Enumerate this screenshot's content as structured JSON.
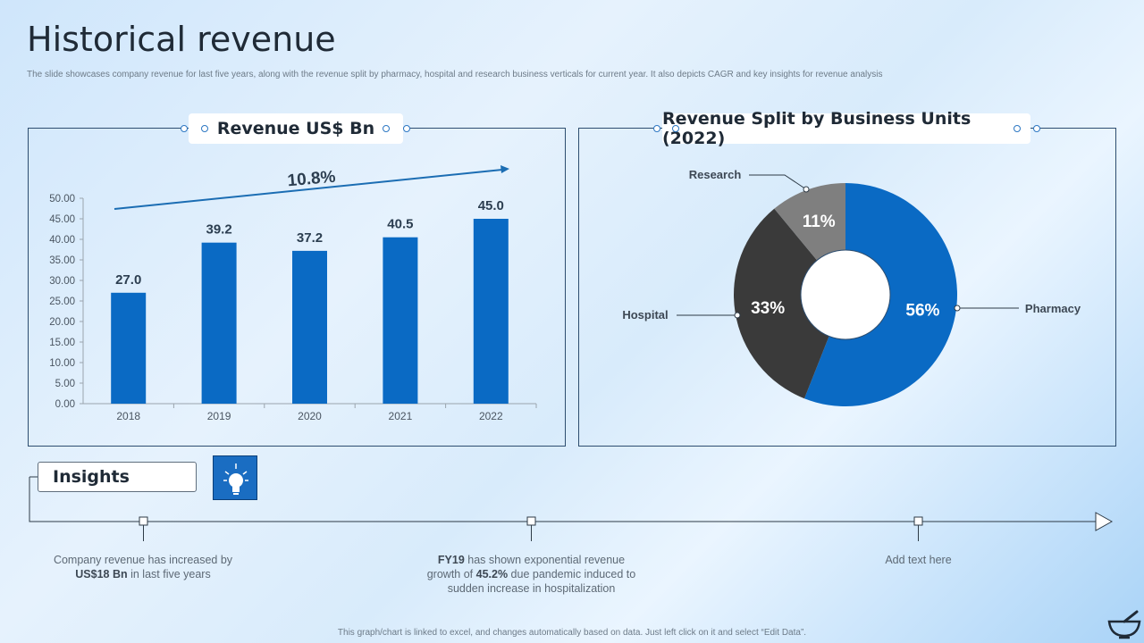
{
  "title": "Historical revenue",
  "subtitle": "The slide showcases company revenue for last five years, along with the revenue split by pharmacy, hospital and research business verticals for current year. It also depicts CAGR and key insights for revenue analysis",
  "left_panel": {
    "heading": "Revenue US$ Bn",
    "cagr": "10.8%"
  },
  "right_panel": {
    "heading": "Revenue Split by Business Units (2022)"
  },
  "chart_data": [
    {
      "type": "bar",
      "title": "Revenue US$ Bn",
      "categories": [
        "2018",
        "2019",
        "2020",
        "2021",
        "2022"
      ],
      "values": [
        27.0,
        39.2,
        37.2,
        40.5,
        45.0
      ],
      "value_labels": [
        "27.0",
        "39.2",
        "37.2",
        "40.5",
        "45.0"
      ],
      "yticks": [
        "0.00",
        "5.00",
        "10.00",
        "15.00",
        "20.00",
        "25.00",
        "30.00",
        "35.00",
        "40.00",
        "45.00",
        "50.00"
      ],
      "ylim": [
        0,
        50
      ],
      "bar_color": "#0a6ac4",
      "annotation": "10.8%"
    },
    {
      "type": "pie",
      "title": "Revenue Split by Business Units (2022)",
      "donut": true,
      "slices": [
        {
          "label": "Pharmacy",
          "value": 56,
          "text": "56%",
          "color": "#0a6ac4"
        },
        {
          "label": "Hospital",
          "value": 33,
          "text": "33%",
          "color": "#3a3a3a"
        },
        {
          "label": "Research",
          "value": 11,
          "text": "11%",
          "color": "#7f7f7f"
        }
      ]
    }
  ],
  "insights": {
    "label": "Insights",
    "items": [
      {
        "pre": "Company revenue  has increased by",
        "bold": "US$18 Bn",
        "post": " in last five  years"
      },
      {
        "bold1": "FY19",
        "mid1": " has shown exponential revenue growth of ",
        "bold2": "45.2%",
        "mid2": " due pandemic induced to sudden increase in hospitalization"
      },
      {
        "text": "Add text here"
      }
    ]
  },
  "footer": "This graph/chart is linked to excel, and changes automatically based on data. Just left click on it and select “Edit Data”."
}
